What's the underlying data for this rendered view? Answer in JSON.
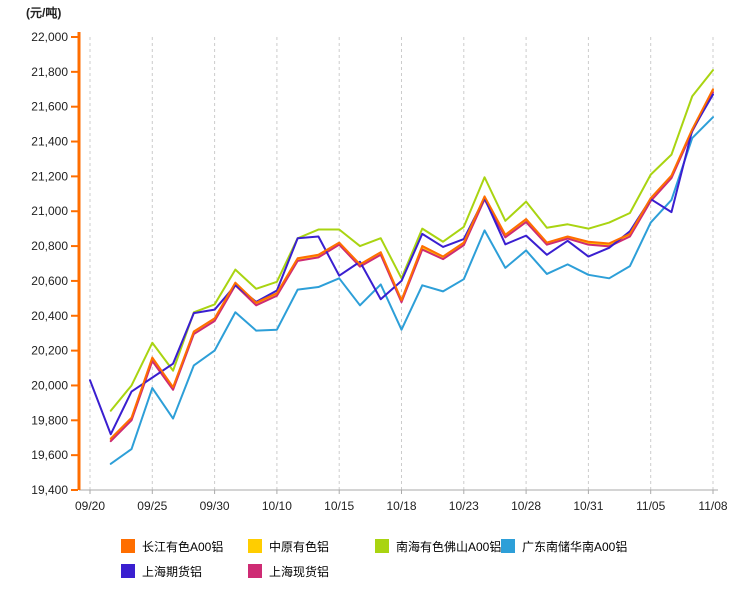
{
  "chart_data": {
    "type": "line",
    "unit_label": "(元/吨)",
    "grid": "vertical-dashed",
    "legend_position": "bottom",
    "axis_colors": {
      "y_axis": "#FF6E00",
      "x_axis": "#AAAAAA",
      "gridline": "#CCCCCC",
      "tick_text": "#222222"
    },
    "y_axis": {
      "min": 19400,
      "max": 22000,
      "step": 200,
      "tick_labels": [
        "22,000",
        "21,800",
        "21,600",
        "21,400",
        "21,200",
        "21,000",
        "20,800",
        "20,600",
        "20,400",
        "20,200",
        "20,000",
        "19,800",
        "19,600",
        "19,400"
      ]
    },
    "x_axis": {
      "num_points": 31,
      "tick_indices": [
        0,
        3,
        6,
        9,
        12,
        15,
        18,
        21,
        24,
        27,
        30
      ],
      "tick_labels": [
        "09/20",
        "09/25",
        "09/30",
        "10/10",
        "10/15",
        "10/18",
        "10/23",
        "10/28",
        "10/31",
        "11/05",
        "11/08"
      ]
    },
    "series": [
      {
        "key": "changjiang",
        "name": "长江有色A00铝",
        "color": "#FF6E00",
        "values": [
          null,
          19695,
          19815,
          20160,
          19990,
          20310,
          20385,
          20590,
          20475,
          20530,
          20730,
          20750,
          20820,
          20695,
          20765,
          20490,
          20800,
          20740,
          20820,
          21085,
          20865,
          20955,
          20820,
          20855,
          20825,
          20815,
          20870,
          21075,
          21205,
          21470,
          21700
        ]
      },
      {
        "key": "zhongyuan",
        "name": "中原有色铝",
        "color": "#FFCD00",
        "values": [
          null,
          19688,
          19808,
          20150,
          19982,
          20302,
          20378,
          20582,
          20468,
          20522,
          20722,
          20742,
          20812,
          20688,
          20757,
          20483,
          20792,
          20732,
          20812,
          21077,
          20857,
          20947,
          20812,
          20847,
          20817,
          20807,
          20862,
          21067,
          21197,
          21462,
          21692
        ]
      },
      {
        "key": "nanhai",
        "name": "南海有色佛山A00铝",
        "color": "#A9D411",
        "values": [
          null,
          19855,
          20000,
          20245,
          20085,
          20420,
          20465,
          20665,
          20555,
          20595,
          20845,
          20895,
          20895,
          20800,
          20845,
          20615,
          20900,
          20825,
          20910,
          21195,
          20945,
          21055,
          20905,
          20925,
          20900,
          20935,
          20990,
          21210,
          21325,
          21660,
          21810
        ]
      },
      {
        "key": "guangdong",
        "name": "广东南储华南A00铝",
        "color": "#2D9FD8",
        "values": [
          null,
          19550,
          19635,
          19985,
          19810,
          20115,
          20200,
          20420,
          20315,
          20320,
          20550,
          20565,
          20615,
          20460,
          20580,
          20320,
          20575,
          20540,
          20610,
          20890,
          20675,
          20775,
          20640,
          20695,
          20635,
          20615,
          20685,
          20935,
          21065,
          21420,
          21540
        ]
      },
      {
        "key": "shanghai_futures",
        "name": "上海期货铝",
        "color": "#3A1FD0",
        "values": [
          20030,
          19720,
          19965,
          20045,
          20125,
          20415,
          20435,
          20575,
          20480,
          20545,
          20845,
          20855,
          20630,
          20710,
          20495,
          20600,
          20870,
          20795,
          20840,
          21075,
          20810,
          20860,
          20750,
          20830,
          20740,
          20790,
          20885,
          21070,
          20995,
          21465,
          21670
        ]
      },
      {
        "key": "shanghai_spot",
        "name": "上海现货铝",
        "color": "#CE2B74",
        "values": [
          null,
          19680,
          19800,
          20140,
          19975,
          20295,
          20370,
          20575,
          20460,
          20515,
          20715,
          20735,
          20808,
          20682,
          20750,
          20478,
          20780,
          20725,
          20805,
          21068,
          20850,
          20938,
          20808,
          20843,
          20808,
          20798,
          20855,
          21058,
          21190,
          21458,
          21683
        ]
      }
    ]
  }
}
